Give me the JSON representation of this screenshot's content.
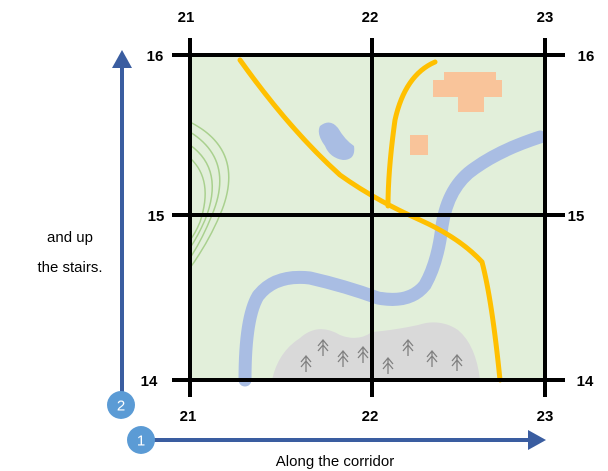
{
  "grid": {
    "x_top_labels": [
      "21",
      "22",
      "23"
    ],
    "x_bottom_labels": [
      "21",
      "22",
      "23"
    ],
    "y_left_labels": [
      "16",
      "15",
      "14"
    ],
    "y_right_labels": [
      "16",
      "15",
      "14"
    ]
  },
  "steps": [
    {
      "number": "1",
      "caption": "Along the corridor"
    },
    {
      "number": "2",
      "caption_lines": [
        "and up",
        "the stairs."
      ]
    }
  ],
  "colors": {
    "map_fill": "#e2efda",
    "road": "#ffc000",
    "river": "#a9bde3",
    "building": "#f9c49a",
    "contour": "#a9d08e",
    "forest": "#d9d9d9",
    "tree": "#808080",
    "arrow": "#3a5da0",
    "step_circle": "#5b9bd5",
    "grid_line": "#000000"
  },
  "icons": {
    "forest_tree": "tree-icon",
    "building": "building-icon"
  }
}
